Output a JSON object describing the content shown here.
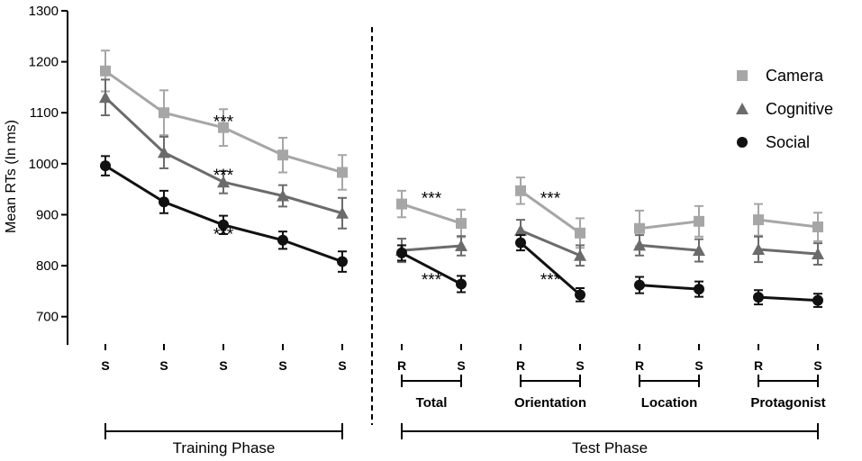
{
  "chart_data": {
    "type": "line",
    "ylabel": "Mean RTs (In ms)",
    "ylim": [
      650,
      1300
    ],
    "yticks": [
      700,
      800,
      900,
      1000,
      1100,
      1200,
      1300
    ],
    "x_positions": [
      "S",
      "S",
      "S",
      "S",
      "S",
      "R",
      "S",
      "R",
      "S",
      "R",
      "S",
      "R",
      "S"
    ],
    "segments": [
      [
        0,
        1,
        2,
        3,
        4
      ],
      [
        5,
        6
      ],
      [
        7,
        8
      ],
      [
        9,
        10
      ],
      [
        11,
        12
      ]
    ],
    "groups": [
      "Total",
      "Orientation",
      "Location",
      "Protagonist"
    ],
    "phases": [
      "Training Phase",
      "Test Phase"
    ],
    "series": [
      {
        "name": "Camera",
        "marker": "square",
        "color": "#a6a6a6",
        "values": [
          1182,
          1100,
          1071,
          1017,
          983,
          921,
          883,
          947,
          864,
          873,
          887,
          890,
          876
        ],
        "errors": [
          40,
          44,
          36,
          34,
          34,
          26,
          27,
          26,
          29,
          35,
          30,
          31,
          28
        ]
      },
      {
        "name": "Cognitive",
        "marker": "triangle",
        "color": "#6b6b6b",
        "values": [
          1130,
          1022,
          964,
          937,
          903,
          830,
          839,
          869,
          820,
          840,
          830,
          832,
          823
        ],
        "errors": [
          35,
          31,
          22,
          21,
          30,
          23,
          19,
          21,
          20,
          20,
          22,
          25,
          21
        ]
      },
      {
        "name": "Social",
        "marker": "circle",
        "color": "#111111",
        "values": [
          996,
          925,
          880,
          850,
          808,
          825,
          764,
          845,
          743,
          762,
          754,
          738,
          732
        ],
        "errors": [
          19,
          22,
          18,
          17,
          20,
          15,
          16,
          15,
          13,
          16,
          15,
          14,
          13
        ]
      }
    ],
    "annotations": [
      {
        "text": "***",
        "x_index": 2,
        "y": 1085
      },
      {
        "text": "***",
        "x_index": 2,
        "y": 980
      },
      {
        "text": "***",
        "x_index": 2,
        "y": 865
      },
      {
        "text": "***",
        "x_index": 5.5,
        "y": 935
      },
      {
        "text": "***",
        "x_index": 5.5,
        "y": 775
      },
      {
        "text": "***",
        "x_index": 7.5,
        "y": 935
      },
      {
        "text": "***",
        "x_index": 7.5,
        "y": 775
      }
    ]
  }
}
